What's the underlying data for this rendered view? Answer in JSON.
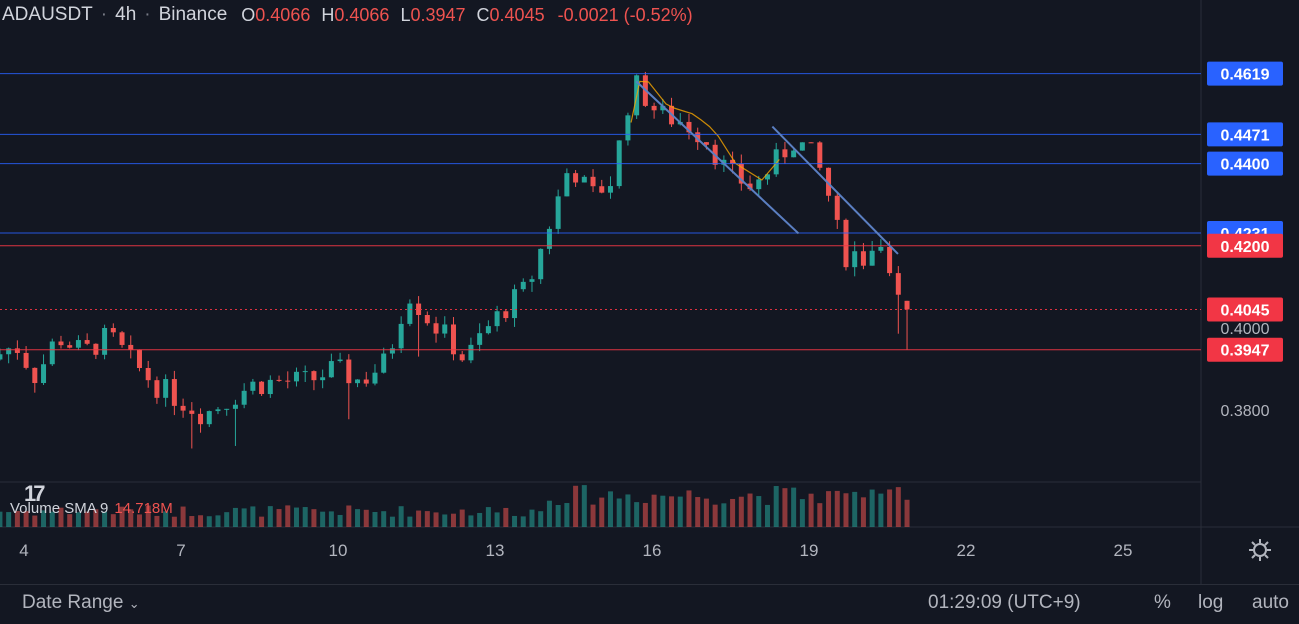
{
  "header": {
    "symbol": "ADAUSDT",
    "interval": "4h",
    "exchange": "Binance",
    "open": "0.4066",
    "high": "0.4066",
    "low": "0.3947",
    "close": "0.4045",
    "change": "-0.0021 (-0.52%)",
    "sep": "·"
  },
  "volume_legend": {
    "label": "Volume SMA 9",
    "value": "14.718M"
  },
  "bottom_bar": {
    "date_range": "Date Range",
    "clock": "01:29:09 (UTC+9)",
    "percent": "%",
    "log": "log",
    "auto": "auto"
  },
  "colors": {
    "background": "#131722",
    "up": "#26a69a",
    "down": "#ef5350",
    "blue_line": "#2962ff",
    "red_line": "#f23645",
    "trend_line": "#5b7fc2"
  },
  "chart_data": {
    "type": "candlestick",
    "x_ticks": [
      "4",
      "7",
      "10",
      "13",
      "16",
      "19",
      "22",
      "25"
    ],
    "y_ticks": [
      "0.4000",
      "0.3800"
    ],
    "y_range": [
      0.3625,
      0.473
    ],
    "price_levels": [
      {
        "value": 0.4619,
        "label": "0.4619",
        "color": "blue"
      },
      {
        "value": 0.4471,
        "label": "0.4471",
        "color": "blue"
      },
      {
        "value": 0.44,
        "label": "0.4400",
        "color": "blue"
      },
      {
        "value": 0.4231,
        "label": "0.4231",
        "color": "blue"
      },
      {
        "value": 0.42,
        "label": "0.4200",
        "color": "red"
      },
      {
        "value": 0.4045,
        "label": "0.4045",
        "color": "red",
        "style": "dotted"
      },
      {
        "value": 0.3947,
        "label": "0.3947",
        "color": "red"
      }
    ],
    "trend_lines": [
      {
        "from": [
          "15.7",
          0.46
        ],
        "to": [
          "18.8",
          0.423
        ]
      },
      {
        "from": [
          "18.3",
          0.449
        ],
        "to": [
          "20.7",
          0.418
        ]
      }
    ],
    "candles": [
      [
        0.392,
        0.4,
        0.395,
        0.402,
        0.389
      ],
      [
        0.395,
        0.392,
        0.398,
        0.39,
        0.384
      ],
      [
        0.392,
        0.388,
        0.395,
        0.386,
        0.38
      ],
      [
        0.388,
        0.39,
        0.391,
        0.385,
        0.381
      ],
      [
        0.39,
        0.398,
        0.399,
        0.396,
        0.389
      ],
      [
        0.398,
        0.397,
        0.396,
        0.399,
        0.393
      ],
      [
        0.397,
        0.398,
        0.399,
        0.395,
        0.392
      ],
      [
        0.398,
        0.393,
        0.396,
        0.397,
        0.391
      ],
      [
        0.393,
        0.391,
        0.394,
        0.39,
        0.387
      ],
      [
        0.391,
        0.388,
        0.39,
        0.386,
        0.384
      ],
      [
        0.388,
        0.385,
        0.387,
        0.384,
        0.383
      ],
      [
        0.385,
        0.383,
        0.382,
        0.384,
        0.381
      ],
      [
        0.383,
        0.38,
        0.381,
        0.379,
        0.378
      ],
      [
        0.38,
        0.381,
        0.383,
        0.382,
        0.38
      ],
      [
        0.381,
        0.383,
        0.385,
        0.386,
        0.384
      ],
      [
        0.383,
        0.385,
        0.387,
        0.386,
        0.385
      ],
      [
        0.385,
        0.386,
        0.387,
        0.389,
        0.388
      ],
      [
        0.386,
        0.385,
        0.384,
        0.386,
        0.387
      ],
      [
        0.385,
        0.387,
        0.388,
        0.389,
        0.39
      ],
      [
        0.387,
        0.388,
        0.389,
        0.39,
        0.391
      ],
      [
        0.388,
        0.395,
        0.396,
        0.393,
        0.398
      ],
      [
        0.395,
        0.409,
        0.411,
        0.412,
        0.408
      ],
      [
        0.409,
        0.404,
        0.403,
        0.401,
        0.4
      ],
      [
        0.404,
        0.396,
        0.394,
        0.395,
        0.399
      ],
      [
        0.396,
        0.391,
        0.392,
        0.394,
        0.397
      ],
      [
        0.391,
        0.405,
        0.407,
        0.408,
        0.405
      ],
      [
        0.405,
        0.421,
        0.425,
        0.427,
        0.423
      ],
      [
        0.421,
        0.436,
        0.438,
        0.437,
        0.438
      ],
      [
        0.436,
        0.442,
        0.445,
        0.446,
        0.448
      ],
      [
        0.442,
        0.459,
        0.462,
        0.458,
        0.456
      ],
      [
        0.459,
        0.452,
        0.45,
        0.447,
        0.449
      ],
      [
        0.452,
        0.448,
        0.444,
        0.442,
        0.445
      ],
      [
        0.448,
        0.436,
        0.435,
        0.438,
        0.439
      ],
      [
        0.436,
        0.446,
        0.447,
        0.443,
        0.442
      ],
      [
        0.446,
        0.438,
        0.436,
        0.439,
        0.432
      ],
      [
        0.438,
        0.42,
        0.417,
        0.418,
        0.414
      ],
      [
        0.42,
        0.415,
        0.413,
        0.418,
        0.414
      ],
      [
        0.415,
        0.406,
        0.4045,
        0.409,
        0.406
      ]
    ],
    "candle_format": "[open, close, c3, c4, c5] approximate; rendered procedurally",
    "volume_series": "approximate per-candle volumes rendered procedurally"
  }
}
